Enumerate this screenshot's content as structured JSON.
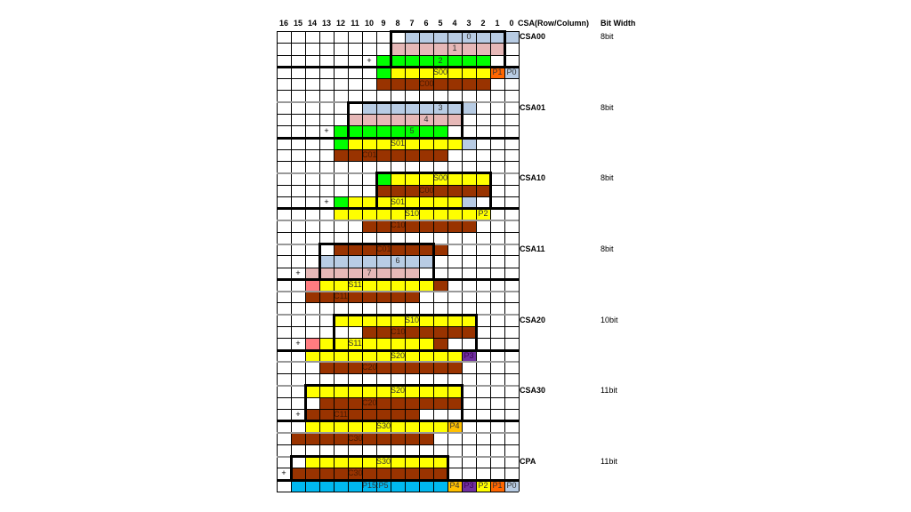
{
  "header": {
    "columns": [
      "16",
      "15",
      "14",
      "13",
      "12",
      "11",
      "10",
      "9",
      "8",
      "7",
      "6",
      "5",
      "4",
      "3",
      "2",
      "1",
      "0"
    ],
    "csa_label": "CSA(Row/Column)",
    "bitwidth_label": "Bit Width"
  },
  "colors": {
    "blue": "#B8CCE4",
    "pink": "#E6B8B7",
    "green": "#00FF00",
    "yellow": "#FFFF00",
    "brown": "#993300",
    "salmon": "#FF7C80",
    "orange": "#FF6600",
    "gold": "#FFC000",
    "purple": "#7030A0",
    "cyan": "#00B8F0"
  },
  "rows_total": 39,
  "sections": [
    {
      "name": "CSA00",
      "bits": "8bit",
      "row": 0
    },
    {
      "name": "CSA01",
      "bits": "8bit",
      "row": 6
    },
    {
      "name": "CSA10",
      "bits": "8bit",
      "row": 12
    },
    {
      "name": "CSA11",
      "bits": "8bit",
      "row": 18
    },
    {
      "name": "CSA20",
      "bits": "10bit",
      "row": 24
    },
    {
      "name": "CSA30",
      "bits": "11bit",
      "row": 30
    },
    {
      "name": "CPA",
      "bits": "11bit",
      "row": 36
    }
  ],
  "fills": [
    {
      "row": 0,
      "from": 7,
      "to": 0,
      "color": "blue",
      "label": "0",
      "label_col": 3
    },
    {
      "row": 1,
      "from": 8,
      "to": 1,
      "color": "pink",
      "label": "1",
      "label_col": 4
    },
    {
      "row": 2,
      "from": 9,
      "to": 2,
      "color": "green",
      "label": "2",
      "label_col": 5
    },
    {
      "row": 3,
      "from": 9,
      "to": 9,
      "color": "green"
    },
    {
      "row": 3,
      "from": 8,
      "to": 2,
      "color": "yellow",
      "label": "S00",
      "label_col": 5
    },
    {
      "row": 3,
      "from": 1,
      "to": 1,
      "color": "orange",
      "label": "P1",
      "label_col": 1
    },
    {
      "row": 3,
      "from": 0,
      "to": 0,
      "color": "blue",
      "label": "P0",
      "label_col": 0
    },
    {
      "row": 4,
      "from": 9,
      "to": 2,
      "color": "brown",
      "label": "C00",
      "label_col": 6
    },
    {
      "row": 6,
      "from": 10,
      "to": 3,
      "color": "blue",
      "label": "3",
      "label_col": 5
    },
    {
      "row": 7,
      "from": 11,
      "to": 4,
      "color": "pink",
      "label": "4",
      "label_col": 6
    },
    {
      "row": 8,
      "from": 12,
      "to": 5,
      "color": "green",
      "label": "5",
      "label_col": 7
    },
    {
      "row": 9,
      "from": 12,
      "to": 12,
      "color": "green"
    },
    {
      "row": 9,
      "from": 11,
      "to": 4,
      "color": "yellow",
      "label": "S01",
      "label_col": 8
    },
    {
      "row": 9,
      "from": 3,
      "to": 3,
      "color": "blue"
    },
    {
      "row": 10,
      "from": 12,
      "to": 5,
      "color": "brown",
      "label": "C01",
      "label_col": 10
    },
    {
      "row": 12,
      "from": 9,
      "to": 9,
      "color": "green"
    },
    {
      "row": 12,
      "from": 8,
      "to": 2,
      "color": "yellow",
      "label": "S00",
      "label_col": 5
    },
    {
      "row": 13,
      "from": 9,
      "to": 2,
      "color": "brown",
      "label": "C00",
      "label_col": 6
    },
    {
      "row": 14,
      "from": 12,
      "to": 12,
      "color": "green"
    },
    {
      "row": 14,
      "from": 11,
      "to": 4,
      "color": "yellow",
      "label": "S01",
      "label_col": 8
    },
    {
      "row": 14,
      "from": 3,
      "to": 3,
      "color": "blue"
    },
    {
      "row": 15,
      "from": 12,
      "to": 3,
      "color": "yellow",
      "label": "S10",
      "label_col": 7
    },
    {
      "row": 15,
      "from": 2,
      "to": 2,
      "color": "yellow",
      "label": "P2",
      "label_col": 2
    },
    {
      "row": 16,
      "from": 10,
      "to": 3,
      "color": "brown",
      "label": "C10",
      "label_col": 8
    },
    {
      "row": 18,
      "from": 12,
      "to": 5,
      "color": "brown",
      "label": "C01",
      "label_col": 9
    },
    {
      "row": 19,
      "from": 13,
      "to": 6,
      "color": "blue",
      "label": "6",
      "label_col": 8
    },
    {
      "row": 20,
      "from": 14,
      "to": 7,
      "color": "pink",
      "label": "7",
      "label_col": 10
    },
    {
      "row": 21,
      "from": 14,
      "to": 14,
      "color": "salmon"
    },
    {
      "row": 21,
      "from": 13,
      "to": 6,
      "color": "yellow",
      "label": "S11",
      "label_col": 11
    },
    {
      "row": 21,
      "from": 5,
      "to": 5,
      "color": "brown"
    },
    {
      "row": 22,
      "from": 14,
      "to": 7,
      "color": "brown",
      "label": "C11",
      "label_col": 12
    },
    {
      "row": 24,
      "from": 12,
      "to": 3,
      "color": "yellow",
      "label": "S10",
      "label_col": 7
    },
    {
      "row": 25,
      "from": 10,
      "to": 3,
      "color": "brown",
      "label": "C10",
      "label_col": 8
    },
    {
      "row": 26,
      "from": 14,
      "to": 14,
      "color": "salmon"
    },
    {
      "row": 26,
      "from": 13,
      "to": 6,
      "color": "yellow",
      "label": "S11",
      "label_col": 11
    },
    {
      "row": 26,
      "from": 5,
      "to": 5,
      "color": "brown"
    },
    {
      "row": 27,
      "from": 14,
      "to": 4,
      "color": "yellow",
      "label": "S20",
      "label_col": 8
    },
    {
      "row": 27,
      "from": 3,
      "to": 3,
      "color": "purple",
      "label": "P3",
      "label_col": 3
    },
    {
      "row": 28,
      "from": 13,
      "to": 4,
      "color": "brown",
      "label": "C20",
      "label_col": 10
    },
    {
      "row": 30,
      "from": 14,
      "to": 4,
      "color": "yellow",
      "label": "S20",
      "label_col": 8
    },
    {
      "row": 31,
      "from": 13,
      "to": 4,
      "color": "brown",
      "label": "C20",
      "label_col": 10
    },
    {
      "row": 32,
      "from": 14,
      "to": 7,
      "color": "brown",
      "label": "C11",
      "label_col": 12
    },
    {
      "row": 33,
      "from": 14,
      "to": 5,
      "color": "yellow",
      "label": "S30",
      "label_col": 9
    },
    {
      "row": 33,
      "from": 4,
      "to": 4,
      "color": "gold",
      "label": "P4",
      "label_col": 4
    },
    {
      "row": 34,
      "from": 15,
      "to": 6,
      "color": "brown",
      "label": "C30",
      "label_col": 11
    },
    {
      "row": 36,
      "from": 14,
      "to": 5,
      "color": "yellow",
      "label": "S30",
      "label_col": 9
    },
    {
      "row": 37,
      "from": 15,
      "to": 5,
      "color": "brown",
      "label": "C30",
      "label_col": 11
    },
    {
      "row": 38,
      "from": 15,
      "to": 5,
      "color": "cyan",
      "label": "P15:P5",
      "label_col": 10
    },
    {
      "row": 38,
      "from": 4,
      "to": 4,
      "color": "gold",
      "label": "P4",
      "label_col": 4
    },
    {
      "row": 38,
      "from": 3,
      "to": 3,
      "color": "purple",
      "label": "P3",
      "label_col": 3
    },
    {
      "row": 38,
      "from": 2,
      "to": 2,
      "color": "yellow",
      "label": "P2",
      "label_col": 2
    },
    {
      "row": 38,
      "from": 1,
      "to": 1,
      "color": "orange",
      "label": "P1",
      "label_col": 1
    },
    {
      "row": 38,
      "from": 0,
      "to": 0,
      "color": "blue",
      "label": "P0",
      "label_col": 0
    }
  ],
  "plus_signs": [
    {
      "row": 2,
      "col": 10,
      "label": "+"
    },
    {
      "row": 8,
      "col": 13,
      "label": "+"
    },
    {
      "row": 14,
      "col": 13,
      "label": "+"
    },
    {
      "row": 20,
      "col": 15,
      "label": "+"
    },
    {
      "row": 26,
      "col": 15,
      "label": "+"
    },
    {
      "row": 32,
      "col": 15,
      "label": "+"
    },
    {
      "row": 37,
      "col": 16,
      "label": "+"
    }
  ],
  "boxes": [
    {
      "from": 8,
      "to": 1,
      "row_start": 0,
      "row_end": 2
    },
    {
      "from": 11,
      "to": 4,
      "row_start": 6,
      "row_end": 8
    },
    {
      "from": 9,
      "to": 2,
      "row_start": 12,
      "row_end": 14
    },
    {
      "from": 13,
      "to": 6,
      "row_start": 18,
      "row_end": 20
    },
    {
      "from": 12,
      "to": 3,
      "row_start": 24,
      "row_end": 26
    },
    {
      "from": 14,
      "to": 4,
      "row_start": 30,
      "row_end": 32
    },
    {
      "from": 15,
      "to": 5,
      "row_start": 36,
      "row_end": 37
    }
  ],
  "thick_lines": [
    3,
    9,
    15,
    21,
    27,
    33,
    38
  ],
  "gray_lines": [
    6,
    12,
    16,
    18,
    22,
    24,
    28,
    30,
    34,
    36
  ]
}
